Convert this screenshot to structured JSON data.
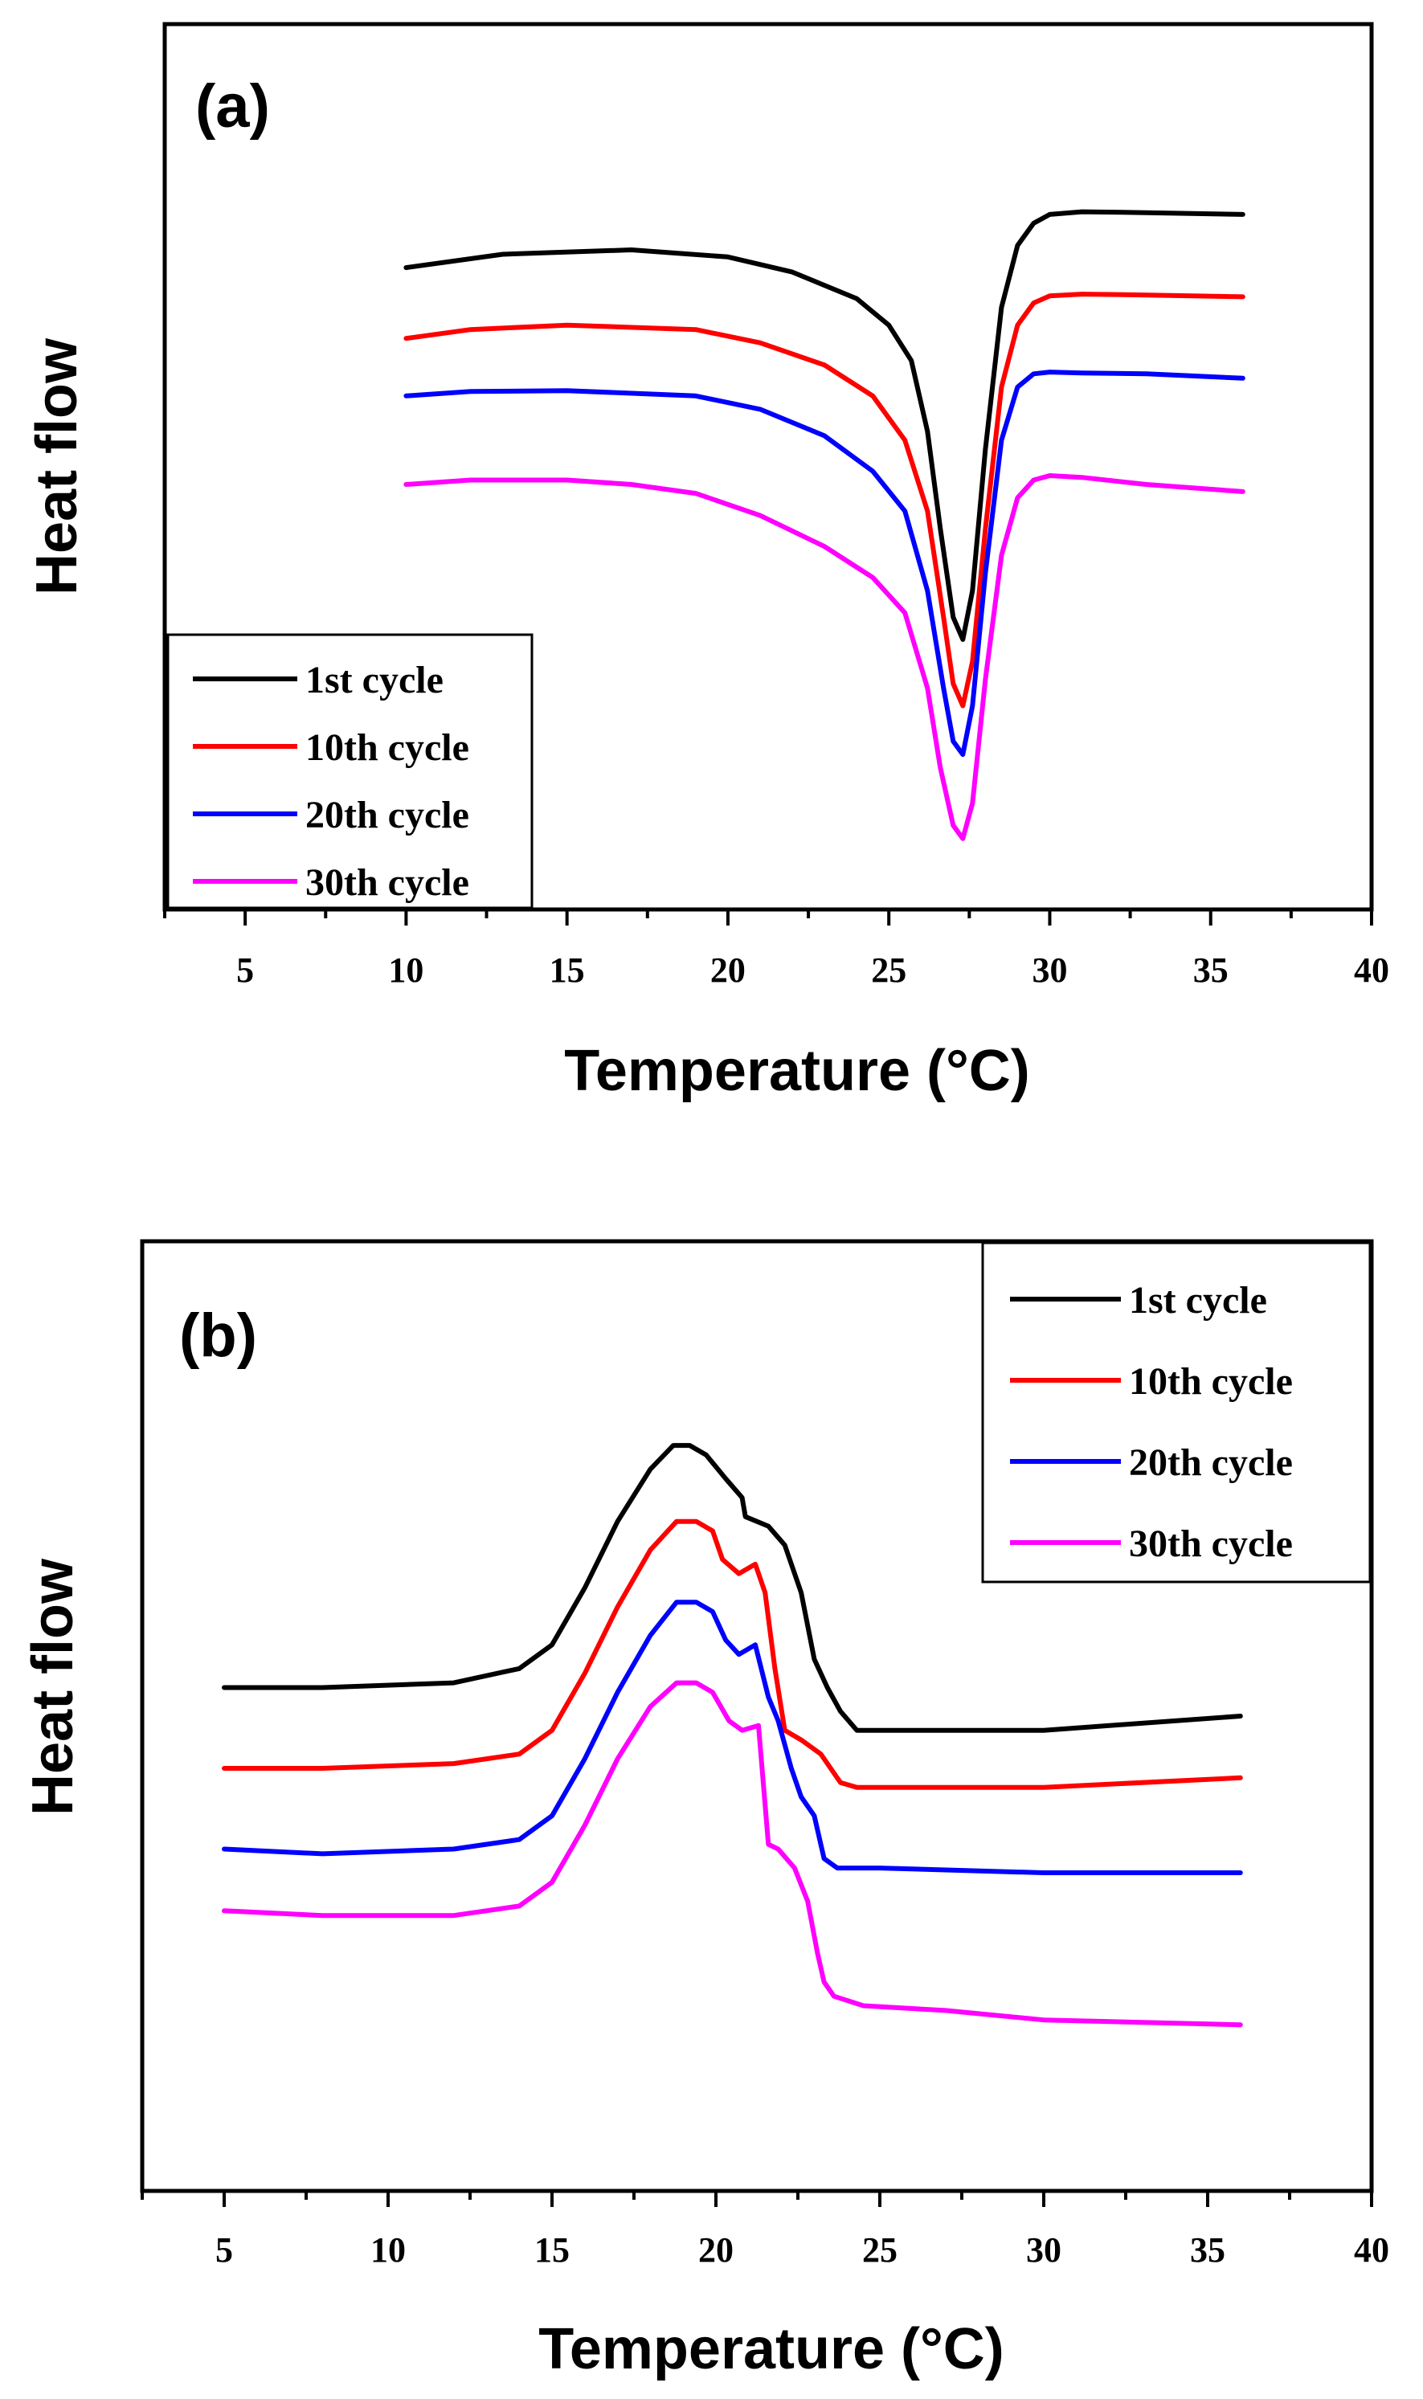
{
  "chart_data": [
    {
      "panel_label": "(a)",
      "type": "line",
      "xlabel": "Temperature (°C)",
      "ylabel": "Heat flow",
      "xlim": [
        2.5,
        40
      ],
      "ylim": [
        0,
        10
      ],
      "xticks": [
        5,
        10,
        15,
        20,
        25,
        30,
        35,
        40
      ],
      "legend_position": "bottom-left",
      "series": [
        {
          "name": "1st cycle",
          "color": "#000000",
          "x": [
            10,
            13,
            17,
            20,
            22,
            24,
            25,
            25.7,
            26.2,
            26.6,
            27,
            27.3,
            27.6,
            28,
            28.5,
            29,
            29.5,
            30,
            31,
            33,
            36
          ],
          "y": [
            7.25,
            7.4,
            7.45,
            7.37,
            7.2,
            6.9,
            6.6,
            6.2,
            5.4,
            4.3,
            3.3,
            3.05,
            3.6,
            5.2,
            6.8,
            7.5,
            7.75,
            7.85,
            7.88,
            7.87,
            7.85
          ]
        },
        {
          "name": "10th cycle",
          "color": "#ff0000",
          "x": [
            10,
            12,
            15,
            19,
            21,
            23,
            24.5,
            25.5,
            26.2,
            26.7,
            27,
            27.3,
            27.6,
            28,
            28.5,
            29,
            29.5,
            30,
            31,
            33,
            36
          ],
          "y": [
            6.45,
            6.55,
            6.6,
            6.55,
            6.4,
            6.15,
            5.8,
            5.3,
            4.5,
            3.3,
            2.55,
            2.3,
            2.8,
            4.3,
            5.9,
            6.6,
            6.85,
            6.93,
            6.95,
            6.94,
            6.92
          ]
        },
        {
          "name": "20th cycle",
          "color": "#0000ff",
          "x": [
            10,
            12,
            15,
            19,
            21,
            23,
            24.5,
            25.5,
            26.2,
            26.7,
            27,
            27.3,
            27.6,
            28,
            28.5,
            29,
            29.5,
            30,
            31,
            33,
            36
          ],
          "y": [
            5.8,
            5.85,
            5.86,
            5.8,
            5.65,
            5.35,
            4.95,
            4.5,
            3.6,
            2.5,
            1.9,
            1.75,
            2.3,
            3.8,
            5.3,
            5.9,
            6.05,
            6.07,
            6.06,
            6.05,
            6.0
          ]
        },
        {
          "name": "30th cycle",
          "color": "#ff00ff",
          "x": [
            10,
            12,
            15,
            17,
            19,
            21,
            23,
            24.5,
            25.5,
            26.2,
            26.6,
            27,
            27.3,
            27.6,
            28,
            28.5,
            29,
            29.5,
            30,
            31,
            33,
            36
          ],
          "y": [
            4.8,
            4.85,
            4.85,
            4.8,
            4.7,
            4.45,
            4.1,
            3.75,
            3.35,
            2.5,
            1.6,
            0.95,
            0.8,
            1.2,
            2.6,
            4.0,
            4.65,
            4.85,
            4.9,
            4.88,
            4.8,
            4.72
          ]
        }
      ]
    },
    {
      "panel_label": "(b)",
      "type": "line",
      "xlabel": "Temperature (°C)",
      "ylabel": "Heat flow",
      "xlim": [
        2.5,
        40
      ],
      "ylim": [
        0,
        10
      ],
      "xticks": [
        5,
        10,
        15,
        20,
        25,
        30,
        35,
        40
      ],
      "legend_position": "top-right",
      "series": [
        {
          "name": "1st cycle",
          "color": "#000000",
          "x": [
            5,
            8,
            12,
            14,
            15,
            16,
            17,
            18,
            18.7,
            19.2,
            19.7,
            20.3,
            20.8,
            20.9,
            21.6,
            22.1,
            22.6,
            23,
            23.4,
            23.8,
            24.3,
            25,
            30,
            36
          ],
          "y": [
            5.3,
            5.3,
            5.35,
            5.5,
            5.75,
            6.35,
            7.05,
            7.6,
            7.85,
            7.85,
            7.75,
            7.5,
            7.3,
            7.1,
            7.0,
            6.8,
            6.3,
            5.6,
            5.3,
            5.05,
            4.85,
            4.85,
            4.85,
            5.0
          ]
        },
        {
          "name": "10th cycle",
          "color": "#ff0000",
          "x": [
            5,
            8,
            12,
            14,
            15,
            16,
            17,
            18,
            18.8,
            19.4,
            19.9,
            20.2,
            20.7,
            21.2,
            21.5,
            21.8,
            22.1,
            22.6,
            23.2,
            23.8,
            24.3,
            25,
            30,
            36
          ],
          "y": [
            4.45,
            4.45,
            4.5,
            4.6,
            4.85,
            5.45,
            6.15,
            6.75,
            7.05,
            7.05,
            6.95,
            6.65,
            6.5,
            6.6,
            6.3,
            5.5,
            4.85,
            4.75,
            4.6,
            4.3,
            4.25,
            4.25,
            4.25,
            4.35
          ]
        },
        {
          "name": "20th cycle",
          "color": "#0000ff",
          "x": [
            5,
            8,
            12,
            14,
            15,
            16,
            17,
            18,
            18.8,
            19.4,
            19.9,
            20.3,
            20.7,
            21.2,
            21.6,
            21.9,
            22.3,
            22.6,
            23,
            23.3,
            23.7,
            24.3,
            25,
            30,
            36
          ],
          "y": [
            3.6,
            3.55,
            3.6,
            3.7,
            3.95,
            4.55,
            5.25,
            5.85,
            6.2,
            6.2,
            6.1,
            5.8,
            5.65,
            5.75,
            5.2,
            4.95,
            4.45,
            4.15,
            3.95,
            3.5,
            3.4,
            3.4,
            3.4,
            3.35,
            3.35
          ]
        },
        {
          "name": "30th cycle",
          "color": "#ff00ff",
          "x": [
            5,
            8,
            12,
            14,
            15,
            16,
            17,
            18,
            18.8,
            19.4,
            19.9,
            20.4,
            20.8,
            21.3,
            21.6,
            21.9,
            22.4,
            22.8,
            23.1,
            23.3,
            23.6,
            24.5,
            27,
            30,
            36
          ],
          "y": [
            2.95,
            2.9,
            2.9,
            3.0,
            3.25,
            3.85,
            4.55,
            5.1,
            5.35,
            5.35,
            5.25,
            4.95,
            4.85,
            4.9,
            3.65,
            3.6,
            3.4,
            3.05,
            2.5,
            2.2,
            2.05,
            1.95,
            1.9,
            1.8,
            1.75
          ]
        }
      ]
    }
  ]
}
